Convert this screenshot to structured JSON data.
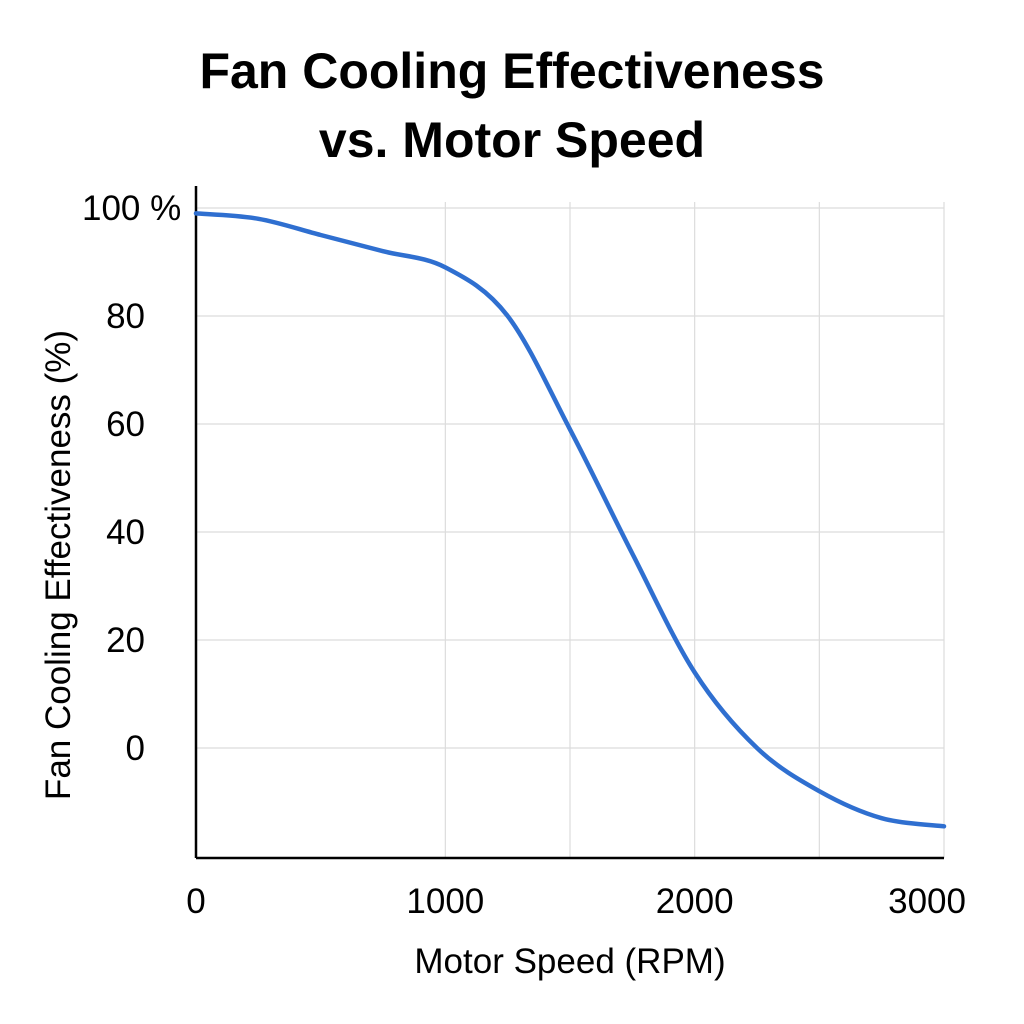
{
  "chart_data": {
    "type": "line",
    "title_lines": [
      "Fan Cooling Effectiveness",
      "vs. Motor Speed"
    ],
    "xlabel": "Motor Speed (RPM)",
    "ylabel": "Fan Cooling Effectiveness (%)",
    "xlim": [
      0,
      3000
    ],
    "ylim": [
      -20,
      100
    ],
    "x_ticks": [
      {
        "value": 0,
        "label": "0"
      },
      {
        "value": 1000,
        "label": "1000"
      },
      {
        "value": 2000,
        "label": "2000"
      },
      {
        "value": 3000,
        "label": "3000"
      }
    ],
    "x_gridlines": [
      1000,
      1500,
      2000,
      2500,
      3000
    ],
    "y_ticks": [
      {
        "value": 100,
        "label": "100 %"
      },
      {
        "value": 80,
        "label": "80"
      },
      {
        "value": 60,
        "label": "60"
      },
      {
        "value": 40,
        "label": "40"
      },
      {
        "value": 20,
        "label": "20"
      },
      {
        "value": 0,
        "label": "0"
      }
    ],
    "grid": true,
    "series": [
      {
        "name": "Fan Cooling Effectiveness",
        "color": "#2f6fd0",
        "x": [
          0,
          250,
          500,
          750,
          1000,
          1250,
          1500,
          1750,
          2000,
          2250,
          2500,
          2750,
          3000
        ],
        "values": [
          99,
          98,
          95,
          92,
          89,
          80,
          59,
          36,
          14,
          0,
          -8,
          -13,
          -14.5
        ]
      }
    ]
  }
}
